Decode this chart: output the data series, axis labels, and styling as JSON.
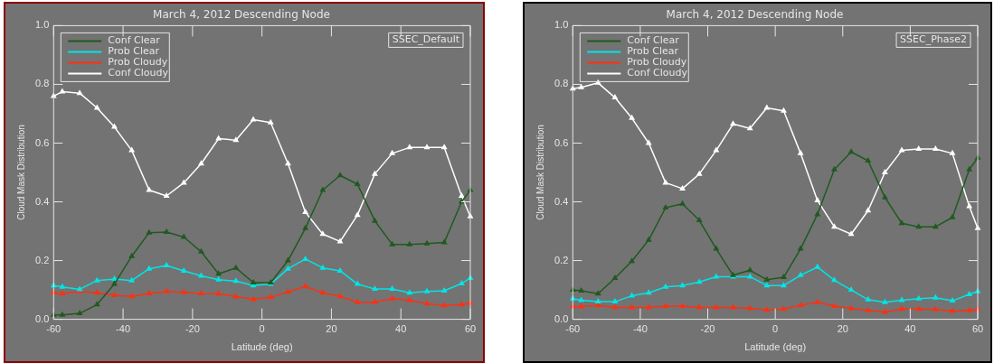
{
  "chart_data": [
    {
      "type": "line",
      "title": "March 4, 2012 Descending Node",
      "xlabel": "Latitude (deg)",
      "ylabel": "Cloud Mask Distribution",
      "annotations": [
        "SSEC_Default"
      ],
      "x": [
        -60,
        -57.5,
        -52.5,
        -47.5,
        -42.5,
        -37.5,
        -32.5,
        -27.5,
        -22.5,
        -17.5,
        -12.5,
        -7.5,
        -2.5,
        2.5,
        7.5,
        12.5,
        17.5,
        22.5,
        27.5,
        32.5,
        37.5,
        42.5,
        47.5,
        52.5,
        57.5,
        60
      ],
      "xlim": [
        -60,
        60
      ],
      "xticks": [
        -60,
        -40,
        -20,
        0,
        20,
        40,
        60
      ],
      "ylim": [
        0,
        1
      ],
      "yticks": [
        {
          "value": 0,
          "label": "0.0"
        },
        {
          "value": 0.2,
          "label": "0.2"
        },
        {
          "value": 0.4,
          "label": "0.4"
        },
        {
          "value": 0.6,
          "label": "0.6"
        },
        {
          "value": 0.8,
          "label": "0.8"
        },
        {
          "value": 1,
          "label": "1.0"
        }
      ],
      "grid": false,
      "legend": "top left",
      "marker": "triangle",
      "line_style": "solid",
      "series": [
        {
          "name": "Conf Clear",
          "color": "#1f5a1f",
          "values": [
            0.015,
            0.015,
            0.02,
            0.05,
            0.12,
            0.215,
            0.295,
            0.297,
            0.28,
            0.23,
            0.155,
            0.175,
            0.125,
            0.125,
            0.2,
            0.31,
            0.44,
            0.49,
            0.46,
            0.335,
            0.255,
            0.255,
            0.258,
            0.262,
            0.4,
            0.44
          ]
        },
        {
          "name": "Prob Clear",
          "color": "#00e5e5",
          "values": [
            0.115,
            0.11,
            0.102,
            0.132,
            0.137,
            0.132,
            0.172,
            0.183,
            0.165,
            0.148,
            0.135,
            0.13,
            0.115,
            0.12,
            0.172,
            0.205,
            0.175,
            0.165,
            0.12,
            0.103,
            0.103,
            0.09,
            0.095,
            0.097,
            0.122,
            0.14
          ]
        },
        {
          "name": "Prob Cloudy",
          "color": "#ff3010",
          "values": [
            0.09,
            0.087,
            0.095,
            0.09,
            0.082,
            0.078,
            0.088,
            0.095,
            0.092,
            0.088,
            0.087,
            0.077,
            0.068,
            0.075,
            0.093,
            0.112,
            0.09,
            0.078,
            0.058,
            0.058,
            0.07,
            0.065,
            0.053,
            0.047,
            0.05,
            0.055
          ]
        },
        {
          "name": "Conf Cloudy",
          "color": "#ffffff",
          "values": [
            0.76,
            0.775,
            0.77,
            0.72,
            0.655,
            0.575,
            0.44,
            0.42,
            0.465,
            0.53,
            0.615,
            0.61,
            0.68,
            0.67,
            0.53,
            0.365,
            0.29,
            0.265,
            0.355,
            0.495,
            0.565,
            0.585,
            0.585,
            0.585,
            0.42,
            0.35
          ]
        }
      ]
    },
    {
      "type": "line",
      "title": "March 4, 2012 Descending Node",
      "xlabel": "Latitude (deg)",
      "ylabel": "Cloud Mask Distribution",
      "annotations": [
        "SSEC_Phase2"
      ],
      "x": [
        -60,
        -57.5,
        -52.5,
        -47.5,
        -42.5,
        -37.5,
        -32.5,
        -27.5,
        -22.5,
        -17.5,
        -12.5,
        -7.5,
        -2.5,
        2.5,
        7.5,
        12.5,
        17.5,
        22.5,
        27.5,
        32.5,
        37.5,
        42.5,
        47.5,
        52.5,
        57.5,
        60
      ],
      "xlim": [
        -60,
        60
      ],
      "xticks": [
        -60,
        -40,
        -20,
        0,
        20,
        40,
        60
      ],
      "ylim": [
        0,
        1
      ],
      "yticks": [
        {
          "value": 0,
          "label": "0.0"
        },
        {
          "value": 0.2,
          "label": "0.2"
        },
        {
          "value": 0.4,
          "label": "0.4"
        },
        {
          "value": 0.6,
          "label": "0.6"
        },
        {
          "value": 0.8,
          "label": "0.8"
        },
        {
          "value": 1,
          "label": "1.0"
        }
      ],
      "grid": false,
      "legend": "top left",
      "marker": "triangle",
      "line_style": "solid",
      "series": [
        {
          "name": "Conf Clear",
          "color": "#1f5a1f",
          "values": [
            0.1,
            0.097,
            0.087,
            0.14,
            0.198,
            0.27,
            0.38,
            0.393,
            0.337,
            0.24,
            0.15,
            0.167,
            0.135,
            0.143,
            0.24,
            0.357,
            0.51,
            0.57,
            0.54,
            0.415,
            0.327,
            0.315,
            0.315,
            0.347,
            0.51,
            0.55
          ]
        },
        {
          "name": "Prob Clear",
          "color": "#00e5e5",
          "values": [
            0.07,
            0.065,
            0.06,
            0.06,
            0.08,
            0.09,
            0.11,
            0.115,
            0.127,
            0.145,
            0.145,
            0.145,
            0.115,
            0.115,
            0.15,
            0.178,
            0.133,
            0.1,
            0.067,
            0.058,
            0.065,
            0.07,
            0.073,
            0.063,
            0.085,
            0.095
          ]
        },
        {
          "name": "Prob Cloudy",
          "color": "#ff3010",
          "values": [
            0.043,
            0.043,
            0.047,
            0.04,
            0.04,
            0.04,
            0.045,
            0.045,
            0.04,
            0.04,
            0.04,
            0.037,
            0.032,
            0.035,
            0.048,
            0.058,
            0.045,
            0.037,
            0.03,
            0.025,
            0.035,
            0.035,
            0.033,
            0.028,
            0.03,
            0.033
          ]
        },
        {
          "name": "Conf Cloudy",
          "color": "#ffffff",
          "values": [
            0.785,
            0.79,
            0.805,
            0.755,
            0.685,
            0.6,
            0.465,
            0.445,
            0.495,
            0.575,
            0.665,
            0.65,
            0.72,
            0.71,
            0.565,
            0.405,
            0.315,
            0.29,
            0.37,
            0.5,
            0.575,
            0.58,
            0.58,
            0.565,
            0.385,
            0.31
          ]
        }
      ]
    }
  ]
}
